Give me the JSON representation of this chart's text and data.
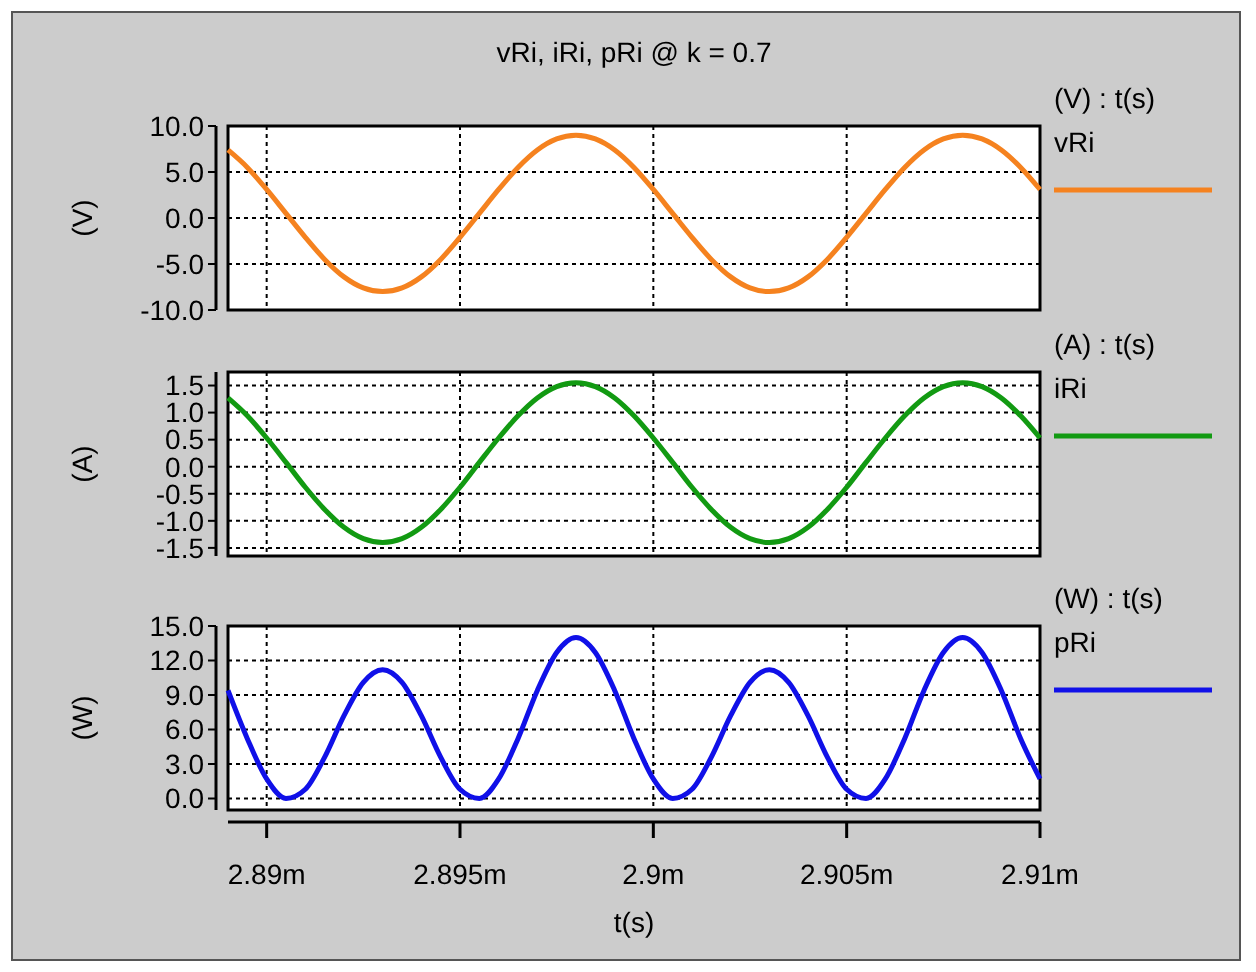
{
  "chart_data": [
    {
      "type": "line",
      "title": "vRi, iRi, pRi @ k = 0.7",
      "ylabel": "(V)",
      "legend_title": "(V) : t(s)",
      "legend": "right",
      "grid": true,
      "tick_labels": "y",
      "marker": "none",
      "line_style": "solid",
      "xlim": [
        2.889,
        2.91
      ],
      "xticks": [
        {
          "value": 2.89,
          "label": null
        },
        {
          "value": 2.895,
          "label": null
        },
        {
          "value": 2.9,
          "label": null
        },
        {
          "value": 2.905,
          "label": null
        },
        {
          "value": 2.91,
          "label": null
        }
      ],
      "ylim": [
        -10,
        10
      ],
      "yticks": [
        {
          "value": -10,
          "label": "-10.0"
        },
        {
          "value": -5,
          "label": "-5.0"
        },
        {
          "value": 0,
          "label": "0.0"
        },
        {
          "value": 5,
          "label": "5.0"
        },
        {
          "value": 10,
          "label": "10.0"
        }
      ],
      "x": [
        2.889,
        2.8895,
        2.89,
        2.8905,
        2.891,
        2.8915,
        2.892,
        2.8925,
        2.893,
        2.8935,
        2.894,
        2.8945,
        2.895,
        2.8955,
        2.896,
        2.8965,
        2.897,
        2.8975,
        2.898,
        2.8985,
        2.899,
        2.8995,
        2.9,
        2.9005,
        2.901,
        2.9015,
        2.902,
        2.9025,
        2.903,
        2.9035,
        2.904,
        2.9045,
        2.905,
        2.9055,
        2.906,
        2.9065,
        2.907,
        2.9075,
        2.908,
        2.9085,
        2.909,
        2.9095,
        2.91
      ],
      "series": [
        {
          "name": "vRi",
          "color": "#f5821f",
          "values": [
            7.4,
            5.5,
            3.1,
            0.5,
            -2.1,
            -4.5,
            -6.4,
            -7.6,
            -8.0,
            -7.6,
            -6.4,
            -4.5,
            -2.1,
            0.5,
            3.1,
            5.5,
            7.4,
            8.6,
            9.0,
            8.6,
            7.4,
            5.5,
            3.1,
            0.5,
            -2.1,
            -4.5,
            -6.4,
            -7.6,
            -8.0,
            -7.6,
            -6.4,
            -4.5,
            -2.1,
            0.5,
            3.1,
            5.5,
            7.4,
            8.6,
            9.0,
            8.6,
            7.4,
            5.5,
            3.1
          ]
        }
      ]
    },
    {
      "type": "line",
      "ylabel": "(A)",
      "legend_title": "(A) : t(s)",
      "legend": "right",
      "grid": true,
      "tick_labels": "y",
      "marker": "none",
      "line_style": "solid",
      "xlim": [
        2.889,
        2.91
      ],
      "xticks": [
        {
          "value": 2.89,
          "label": null
        },
        {
          "value": 2.895,
          "label": null
        },
        {
          "value": 2.9,
          "label": null
        },
        {
          "value": 2.905,
          "label": null
        },
        {
          "value": 2.91,
          "label": null
        }
      ],
      "ylim": [
        -1.65,
        1.75
      ],
      "yticks": [
        {
          "value": -1.5,
          "label": "-1.5"
        },
        {
          "value": -1,
          "label": "-1.0"
        },
        {
          "value": -0.5,
          "label": "-0.5"
        },
        {
          "value": 0,
          "label": "0.0"
        },
        {
          "value": 0.5,
          "label": "0.5"
        },
        {
          "value": 1,
          "label": "1.0"
        },
        {
          "value": 1.5,
          "label": "1.5"
        }
      ],
      "x": [
        2.889,
        2.8895,
        2.89,
        2.8905,
        2.891,
        2.8915,
        2.892,
        2.8925,
        2.893,
        2.8935,
        2.894,
        2.8945,
        2.895,
        2.8955,
        2.896,
        2.8965,
        2.897,
        2.8975,
        2.898,
        2.8985,
        2.899,
        2.8995,
        2.9,
        2.9005,
        2.901,
        2.9015,
        2.902,
        2.9025,
        2.903,
        2.9035,
        2.904,
        2.9045,
        2.905,
        2.9055,
        2.906,
        2.9065,
        2.907,
        2.9075,
        2.908,
        2.9085,
        2.909,
        2.9095,
        2.91
      ],
      "series": [
        {
          "name": "iRi",
          "color": "#129a12",
          "values": [
            1.27,
            0.94,
            0.53,
            0.08,
            -0.38,
            -0.79,
            -1.12,
            -1.33,
            -1.4,
            -1.33,
            -1.12,
            -0.79,
            -0.38,
            0.08,
            0.53,
            0.94,
            1.27,
            1.48,
            1.55,
            1.48,
            1.27,
            0.94,
            0.53,
            0.08,
            -0.38,
            -0.79,
            -1.12,
            -1.33,
            -1.4,
            -1.33,
            -1.12,
            -0.79,
            -0.38,
            0.08,
            0.53,
            0.94,
            1.27,
            1.48,
            1.55,
            1.48,
            1.27,
            0.94,
            0.53
          ]
        }
      ]
    },
    {
      "type": "line",
      "xlabel": "t(s)",
      "ylabel": "(W)",
      "legend_title": "(W) : t(s)",
      "legend": "right",
      "grid": true,
      "marker": "none",
      "line_style": "solid",
      "xlim": [
        2.889,
        2.91
      ],
      "xticks": [
        {
          "value": 2.89,
          "label": "2.89m"
        },
        {
          "value": 2.895,
          "label": "2.895m"
        },
        {
          "value": 2.9,
          "label": "2.9m"
        },
        {
          "value": 2.905,
          "label": "2.905m"
        },
        {
          "value": 2.91,
          "label": "2.91m"
        }
      ],
      "ylim": [
        -1,
        15
      ],
      "yticks": [
        {
          "value": 0,
          "label": "0.0"
        },
        {
          "value": 3,
          "label": "3.0"
        },
        {
          "value": 6,
          "label": "6.0"
        },
        {
          "value": 9,
          "label": "9.0"
        },
        {
          "value": 12,
          "label": "12.0"
        },
        {
          "value": 15,
          "label": "15.0"
        }
      ],
      "x": [
        2.889,
        2.8895,
        2.89,
        2.8905,
        2.891,
        2.8915,
        2.892,
        2.8925,
        2.893,
        2.8935,
        2.894,
        2.8945,
        2.895,
        2.8955,
        2.896,
        2.8965,
        2.897,
        2.8975,
        2.898,
        2.8985,
        2.899,
        2.8995,
        2.9,
        2.9005,
        2.901,
        2.9015,
        2.902,
        2.9025,
        2.903,
        2.9035,
        2.904,
        2.9045,
        2.905,
        2.9055,
        2.906,
        2.9065,
        2.907,
        2.9075,
        2.908,
        2.9085,
        2.909,
        2.9095,
        2.91
      ],
      "series": [
        {
          "name": "pRi",
          "color": "#1010e8",
          "values": [
            9.4,
            5.2,
            1.7,
            0.0,
            0.8,
            3.6,
            7.2,
            10.1,
            11.2,
            10.1,
            7.2,
            3.6,
            0.8,
            0.0,
            1.7,
            5.2,
            9.4,
            12.7,
            14.0,
            12.7,
            9.4,
            5.2,
            1.7,
            0.0,
            0.8,
            3.6,
            7.2,
            10.1,
            11.2,
            10.1,
            7.2,
            3.6,
            0.8,
            0.0,
            1.7,
            5.2,
            9.4,
            12.7,
            14.0,
            12.7,
            9.4,
            5.2,
            1.7
          ]
        }
      ]
    }
  ]
}
